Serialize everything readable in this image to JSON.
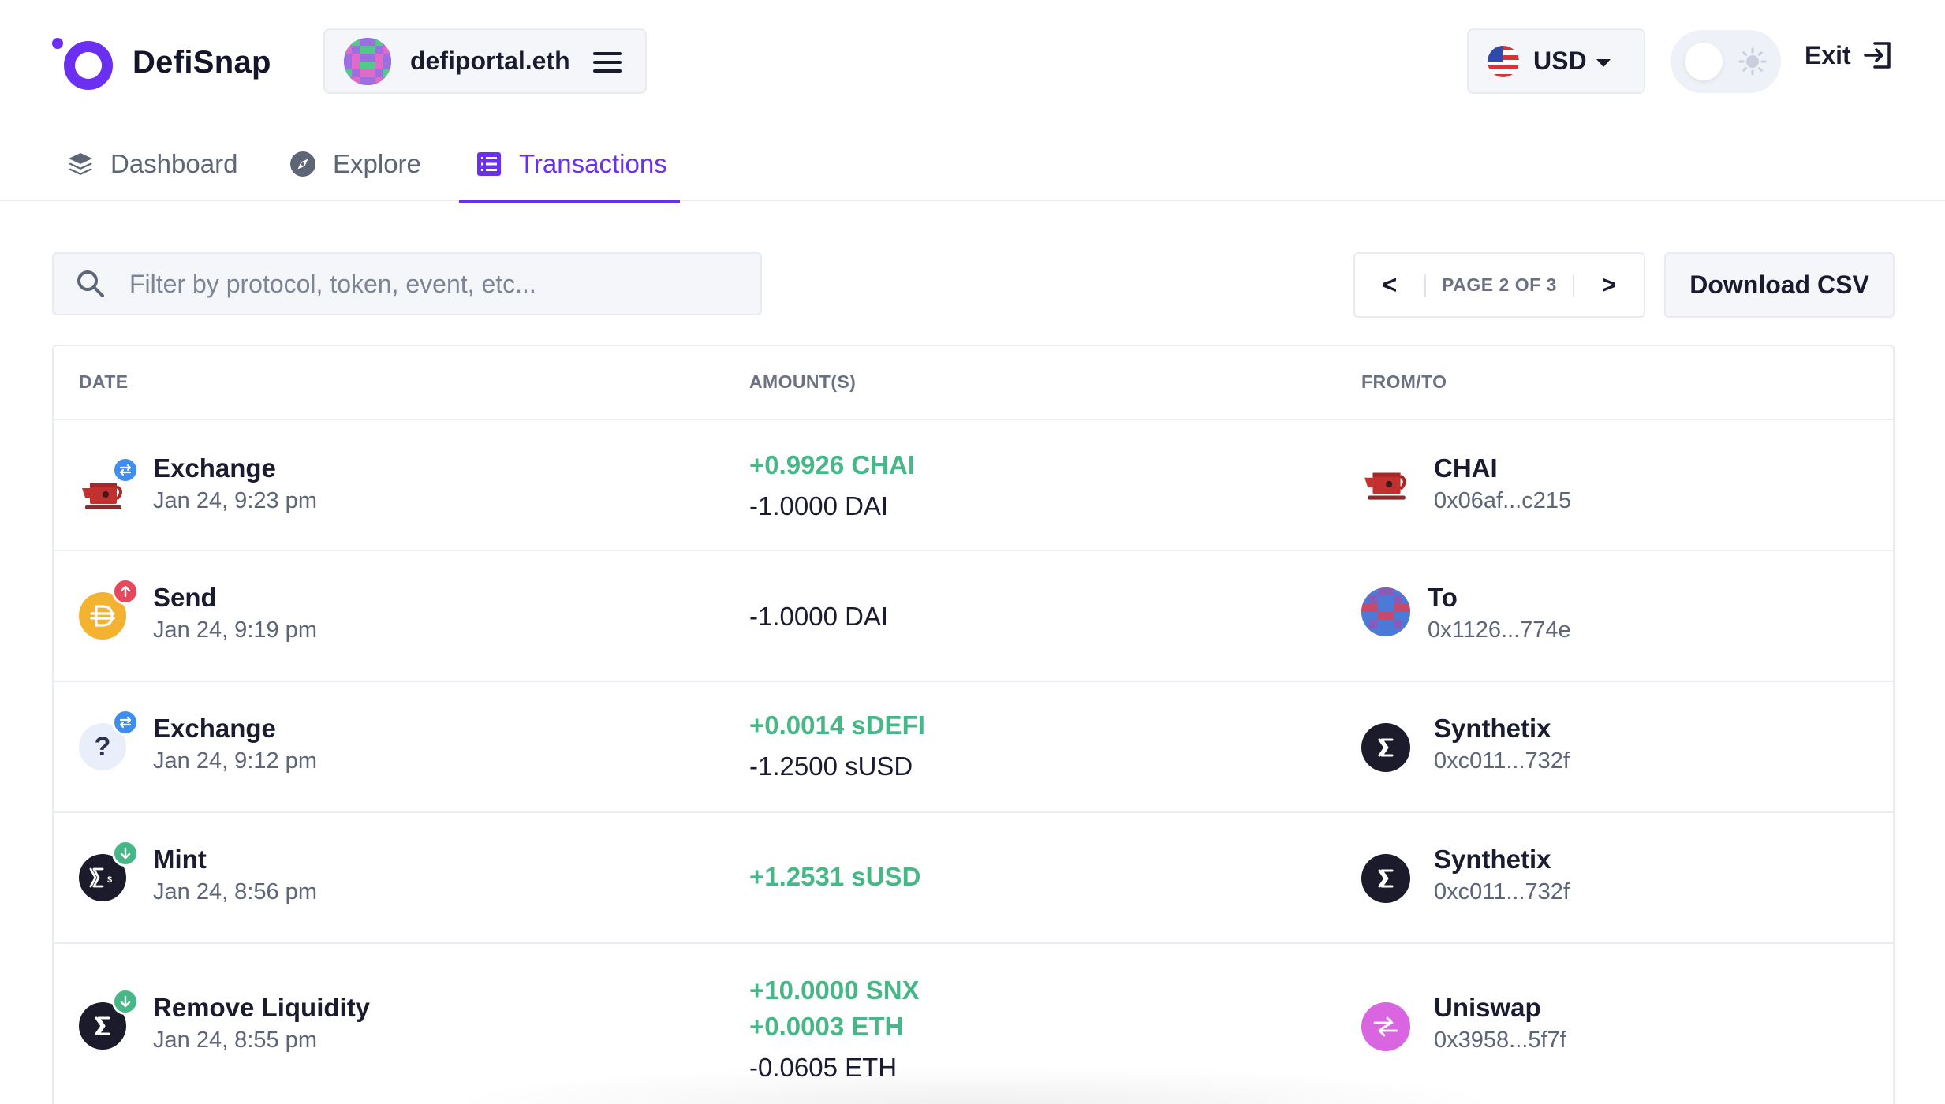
{
  "app": {
    "name": "DefiSnap"
  },
  "account": {
    "name": "defiportal.eth"
  },
  "currency": {
    "selected": "USD"
  },
  "header": {
    "exit_label": "Exit"
  },
  "tabs": [
    {
      "label": "Dashboard",
      "icon": "layers-icon",
      "active": false
    },
    {
      "label": "Explore",
      "icon": "compass-icon",
      "active": false
    },
    {
      "label": "Transactions",
      "icon": "list-icon",
      "active": true
    }
  ],
  "search": {
    "placeholder": "Filter by protocol, token, event, etc...",
    "value": ""
  },
  "pagination": {
    "prev": "<",
    "label": "PAGE 2 OF 3",
    "next": ">"
  },
  "download": {
    "label": "Download CSV"
  },
  "table": {
    "columns": [
      "DATE",
      "AMOUNT(S)",
      "FROM/TO"
    ],
    "rows": [
      {
        "event": "Exchange",
        "date": "Jan 24, 9:23 pm",
        "event_icon": "chai-teapot-icon",
        "badge": "exchange-arrows-icon",
        "amounts": [
          {
            "text": "+0.9926 CHAI",
            "direction": "in"
          },
          {
            "text": "-1.0000 DAI",
            "direction": "out"
          }
        ],
        "party": {
          "name": "CHAI",
          "address": "0x06af...c215",
          "icon": "chai-teapot-icon"
        }
      },
      {
        "event": "Send",
        "date": "Jan 24, 9:19 pm",
        "event_icon": "dai-coin-icon",
        "badge": "arrow-up-icon",
        "amounts": [
          {
            "text": "-1.0000 DAI",
            "direction": "out"
          }
        ],
        "party": {
          "name": "To",
          "address": "0x1126...774e",
          "icon": "identicon-avatar"
        }
      },
      {
        "event": "Exchange",
        "date": "Jan 24, 9:12 pm",
        "event_icon": "unknown-token-icon",
        "badge": "exchange-arrows-icon",
        "amounts": [
          {
            "text": "+0.0014 sDEFI",
            "direction": "in"
          },
          {
            "text": "-1.2500 sUSD",
            "direction": "out"
          }
        ],
        "party": {
          "name": "Synthetix",
          "address": "0xc011...732f",
          "icon": "synthetix-icon"
        }
      },
      {
        "event": "Mint",
        "date": "Jan 24, 8:56 pm",
        "event_icon": "susd-icon",
        "badge": "arrow-down-icon",
        "amounts": [
          {
            "text": "+1.2531 sUSD",
            "direction": "in"
          }
        ],
        "party": {
          "name": "Synthetix",
          "address": "0xc011...732f",
          "icon": "synthetix-icon"
        }
      },
      {
        "event": "Remove Liquidity",
        "date": "Jan 24, 8:55 pm",
        "event_icon": "synthetix-icon",
        "badge": "arrow-down-icon",
        "amounts": [
          {
            "text": "+10.0000 SNX",
            "direction": "in"
          },
          {
            "text": "+0.0003 ETH",
            "direction": "in"
          },
          {
            "text": "-0.0605 ETH",
            "direction": "out"
          }
        ],
        "party": {
          "name": "Uniswap",
          "address": "0x3958...5f7f",
          "icon": "uniswap-icon"
        }
      }
    ]
  },
  "colors": {
    "brand": "#6a2ff0",
    "positive": "#46b888",
    "exchange_badge": "#3d8ef0",
    "send_badge": "#e8485c",
    "receive_badge": "#46b888",
    "synthetix": "#1c1b2c",
    "uniswap": "#d966e0"
  }
}
